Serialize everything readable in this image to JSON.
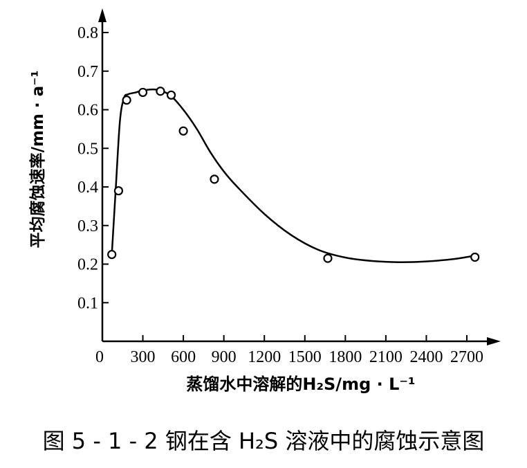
{
  "caption": "图 5 - 1 - 2   钢在含 H₂S 溶液中的腐蚀示意图",
  "chart_data": {
    "type": "scatter",
    "title": "",
    "xlabel": "蒸馏水中溶解的H₂S/mg · L⁻¹",
    "ylabel": "平均腐蚀速率/mm · a⁻¹",
    "xlim": [
      0,
      3200
    ],
    "ylim": [
      0,
      0.9
    ],
    "xticks": [
      0,
      300,
      600,
      900,
      1200,
      1500,
      1800,
      2100,
      2400,
      2700
    ],
    "xtick_labels": [
      "0",
      "300",
      "600",
      "900",
      "1200",
      "1500",
      "1800",
      "2100",
      "2400",
      "2700"
    ],
    "yticks": [
      0.1,
      0.2,
      0.3,
      0.4,
      0.5,
      0.6,
      0.7,
      0.8
    ],
    "ytick_labels": [
      "0.1",
      "0.2",
      "0.3",
      "0.4",
      "0.5",
      "0.6",
      "0.7",
      "0.8"
    ],
    "series": [
      {
        "kind": "points",
        "x": [
          70,
          120,
          180,
          300,
          430,
          510,
          600,
          830,
          1670,
          2760
        ],
        "y": [
          0.225,
          0.39,
          0.625,
          0.645,
          0.648,
          0.638,
          0.545,
          0.42,
          0.215,
          0.218
        ]
      },
      {
        "kind": "fitted-curve",
        "x": [
          70,
          100,
          130,
          160,
          190,
          250,
          300,
          400,
          500,
          600,
          700,
          800,
          900,
          1000,
          1200,
          1400,
          1600,
          1800,
          2000,
          2200,
          2400,
          2600,
          2760
        ],
        "y": [
          0.225,
          0.4,
          0.57,
          0.63,
          0.64,
          0.645,
          0.65,
          0.652,
          0.638,
          0.6,
          0.55,
          0.49,
          0.44,
          0.4,
          0.33,
          0.275,
          0.237,
          0.217,
          0.208,
          0.205,
          0.207,
          0.213,
          0.222
        ]
      }
    ],
    "grid": false,
    "legend": "none"
  }
}
